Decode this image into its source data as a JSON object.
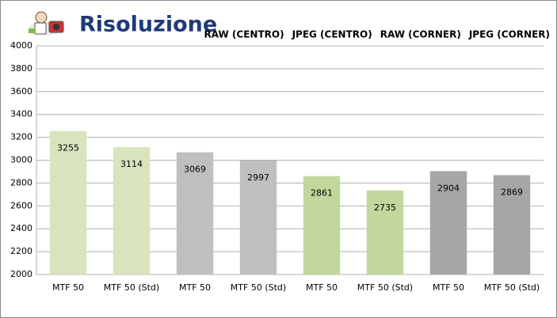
{
  "chart_data": {
    "type": "bar",
    "title": "Risoluzione",
    "categories": [
      "MTF 50",
      "MTF 50 (Std)",
      "MTF 50",
      "MTF 50 (Std)",
      "MTF 50",
      "MTF 50 (Std)",
      "MTF 50",
      "MTF 50 (Std)"
    ],
    "series": [
      {
        "name": "RAW (CENTRO)",
        "color": "#d7e4bd",
        "values": [
          3255,
          3114,
          null,
          null,
          null,
          null,
          null,
          null
        ]
      },
      {
        "name": "JPEG (CENTRO)",
        "color": "#bfbfbf",
        "values": [
          null,
          null,
          3069,
          2997,
          null,
          null,
          null,
          null
        ]
      },
      {
        "name": "RAW (CORNER)",
        "color": "#c3d69b",
        "values": [
          null,
          null,
          null,
          null,
          2861,
          2735,
          null,
          null
        ]
      },
      {
        "name": "JPEG (CORNER)",
        "color": "#a6a6a6",
        "values": [
          null,
          null,
          null,
          null,
          null,
          null,
          2904,
          2869
        ]
      }
    ],
    "ylim": [
      2000,
      4000
    ],
    "yticks": [
      2000,
      2200,
      2400,
      2600,
      2800,
      3000,
      3200,
      3400,
      3600,
      3800,
      4000
    ],
    "grid": true,
    "legend": "top-right"
  }
}
